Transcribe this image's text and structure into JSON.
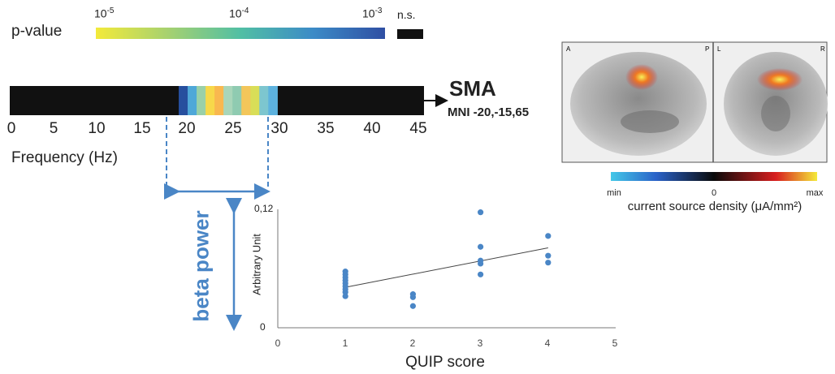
{
  "pvalue_colorbar": {
    "label": "p-value",
    "ticks": [
      {
        "base": "10",
        "exp": "-5"
      },
      {
        "base": "10",
        "exp": "-4"
      },
      {
        "base": "10",
        "exp": "-3"
      }
    ],
    "ns_label": "n.s.",
    "colors": [
      "#f3ea3a",
      "#a6d170",
      "#51bfa4",
      "#3c8bc7",
      "#2f4fa3"
    ]
  },
  "frequency_axis": {
    "label": "Frequency (Hz)",
    "ticks": [
      "0",
      "5",
      "10",
      "15",
      "20",
      "25",
      "30",
      "35",
      "40",
      "45"
    ],
    "range": [
      0,
      45
    ],
    "band_hz": [
      18,
      28
    ],
    "band_colors": [
      "#274f9e",
      "#4fa8d8",
      "#9ad0a8",
      "#f7d84a",
      "#f9b84f",
      "#a9d6ba",
      "#8fcbb1",
      "#f3c65a",
      "#d9de58",
      "#7dc6cf",
      "#5db2de"
    ]
  },
  "region": {
    "name": "SMA",
    "coords": "MNI -20,-15,65"
  },
  "beta_label": "beta power",
  "brain": {
    "corner_labels": [
      "A",
      "P",
      "L",
      "R"
    ],
    "colorbar_ticks": [
      "min",
      "0",
      "max"
    ],
    "colorbar_label": "current source density (μA/mm²)",
    "colors": [
      "#44c8e8",
      "#2a62c8",
      "#0a0a0a",
      "#d81e1e",
      "#f4ea3a"
    ]
  },
  "chart_data": {
    "type": "scatter",
    "title": "",
    "xlabel": "QUIP score",
    "ylabel": "Arbitrary Unit",
    "xlim": [
      0,
      5
    ],
    "ylim": [
      0,
      0.12
    ],
    "x_ticks": [
      "0",
      "1",
      "2",
      "3",
      "4",
      "5"
    ],
    "y_ticks": [
      "0",
      "0,12"
    ],
    "grid": false,
    "point_color": "#4a86c6",
    "points": [
      {
        "x": 1,
        "y": 0.057
      },
      {
        "x": 1,
        "y": 0.054
      },
      {
        "x": 1,
        "y": 0.051
      },
      {
        "x": 1,
        "y": 0.048
      },
      {
        "x": 1,
        "y": 0.045
      },
      {
        "x": 1,
        "y": 0.042
      },
      {
        "x": 1,
        "y": 0.039
      },
      {
        "x": 1,
        "y": 0.036
      },
      {
        "x": 1,
        "y": 0.032
      },
      {
        "x": 2,
        "y": 0.034
      },
      {
        "x": 2,
        "y": 0.031
      },
      {
        "x": 2,
        "y": 0.022
      },
      {
        "x": 3,
        "y": 0.117
      },
      {
        "x": 3,
        "y": 0.082
      },
      {
        "x": 3,
        "y": 0.068
      },
      {
        "x": 3,
        "y": 0.065
      },
      {
        "x": 3,
        "y": 0.054
      },
      {
        "x": 4,
        "y": 0.093
      },
      {
        "x": 4,
        "y": 0.073
      },
      {
        "x": 4,
        "y": 0.066
      }
    ],
    "trendline": [
      {
        "x": 1,
        "y": 0.041
      },
      {
        "x": 4,
        "y": 0.081
      }
    ]
  }
}
